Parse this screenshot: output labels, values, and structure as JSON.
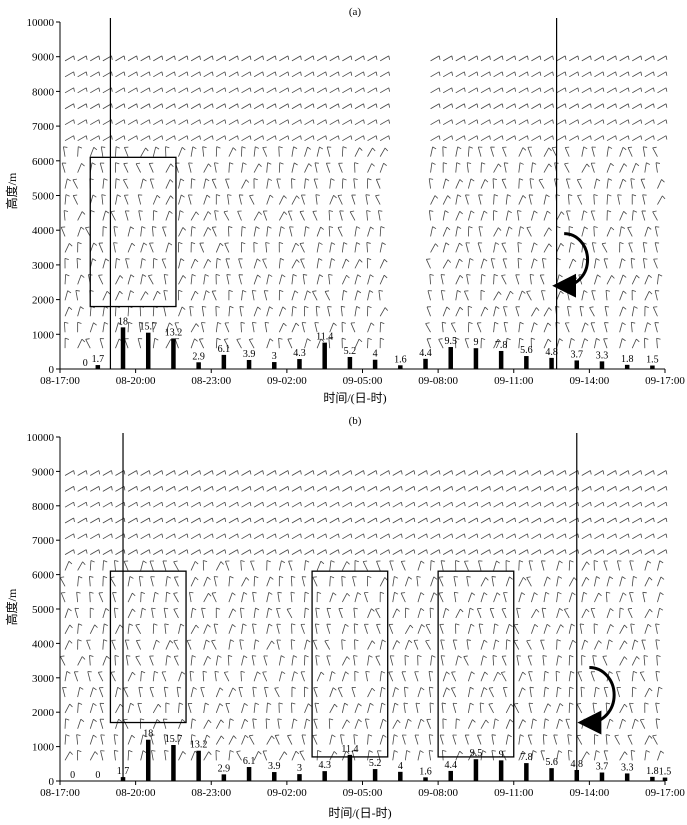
{
  "chart_data": [
    {
      "type": "bar",
      "panel_label": "(a)",
      "ylabel": "高度/m",
      "xlabel": "时间/(日-时)",
      "ylim": [
        0,
        10000
      ],
      "yticks": [
        0,
        1000,
        2000,
        3000,
        4000,
        5000,
        6000,
        7000,
        8000,
        9000,
        10000
      ],
      "xlim_hours": [
        0,
        24
      ],
      "xticks": [
        {
          "label": "08-17:00",
          "hour": 0
        },
        {
          "label": "08-20:00",
          "hour": 3
        },
        {
          "label": "08-23:00",
          "hour": 6
        },
        {
          "label": "09-02:00",
          "hour": 9
        },
        {
          "label": "09-05:00",
          "hour": 12
        },
        {
          "label": "09-08:00",
          "hour": 15
        },
        {
          "label": "09-11:00",
          "hour": 18
        },
        {
          "label": "09-14:00",
          "hour": 21
        },
        {
          "label": "09-17:00",
          "hour": 24
        }
      ],
      "bars": [
        {
          "hour": 1,
          "value": 0
        },
        {
          "hour": 1.5,
          "value": 1.7
        },
        {
          "hour": 2.5,
          "value": 18
        },
        {
          "hour": 3.5,
          "value": 15.7
        },
        {
          "hour": 4.5,
          "value": 13.2
        },
        {
          "hour": 5.5,
          "value": 2.9
        },
        {
          "hour": 6.5,
          "value": 6.1
        },
        {
          "hour": 7.5,
          "value": 3.9
        },
        {
          "hour": 8.5,
          "value": 3
        },
        {
          "hour": 9.5,
          "value": 4.3
        },
        {
          "hour": 10.5,
          "value": 11.4
        },
        {
          "hour": 11.5,
          "value": 5.2
        },
        {
          "hour": 12.5,
          "value": 4
        },
        {
          "hour": 13.5,
          "value": 1.6
        },
        {
          "hour": 14.5,
          "value": 4.4
        },
        {
          "hour": 15.5,
          "value": 9.5
        },
        {
          "hour": 16.5,
          "value": 9
        },
        {
          "hour": 17.5,
          "value": 7.8
        },
        {
          "hour": 18.5,
          "value": 5.6
        },
        {
          "hour": 19.5,
          "value": 4.8
        },
        {
          "hour": 20.5,
          "value": 3.7
        },
        {
          "hour": 21.5,
          "value": 3.3
        },
        {
          "hour": 22.5,
          "value": 1.8
        },
        {
          "hour": 23.5,
          "value": 1.5
        }
      ],
      "vertical_lines_hour": [
        2,
        19.7
      ],
      "boxes": [
        {
          "hour_start": 1.2,
          "hour_end": 4.6,
          "alt_bottom": 1800,
          "alt_top": 6100
        }
      ],
      "rotation_arrow": {
        "hour": 20,
        "alt_bottom": 2400,
        "alt_top": 3900
      },
      "wind_barb_gap_hours": [
        12.7,
        14.5
      ]
    },
    {
      "type": "bar",
      "panel_label": "(b)",
      "ylabel": "高度/m",
      "xlabel": "时间/(日-时)",
      "ylim": [
        0,
        10000
      ],
      "yticks": [
        0,
        1000,
        2000,
        3000,
        4000,
        5000,
        6000,
        7000,
        8000,
        9000,
        10000
      ],
      "xlim_hours": [
        0,
        24
      ],
      "xticks": [
        {
          "label": "08-17:00",
          "hour": 0
        },
        {
          "label": "08-20:00",
          "hour": 3
        },
        {
          "label": "08-23:00",
          "hour": 6
        },
        {
          "label": "09-02:00",
          "hour": 9
        },
        {
          "label": "09-05:00",
          "hour": 12
        },
        {
          "label": "09-08:00",
          "hour": 15
        },
        {
          "label": "09-11:00",
          "hour": 18
        },
        {
          "label": "09-14:00",
          "hour": 21
        },
        {
          "label": "09-17:00",
          "hour": 24
        }
      ],
      "bars": [
        {
          "hour": 0.5,
          "value": 0
        },
        {
          "hour": 1.5,
          "value": 0
        },
        {
          "hour": 2.5,
          "value": 1.7
        },
        {
          "hour": 3.5,
          "value": 18
        },
        {
          "hour": 4.5,
          "value": 15.7
        },
        {
          "hour": 5.5,
          "value": 13.2
        },
        {
          "hour": 6.5,
          "value": 2.9
        },
        {
          "hour": 7.5,
          "value": 6.1
        },
        {
          "hour": 8.5,
          "value": 3.9
        },
        {
          "hour": 9.5,
          "value": 3
        },
        {
          "hour": 10.5,
          "value": 4.3
        },
        {
          "hour": 11.5,
          "value": 11.4
        },
        {
          "hour": 12.5,
          "value": 5.2
        },
        {
          "hour": 13.5,
          "value": 4
        },
        {
          "hour": 14.5,
          "value": 1.6
        },
        {
          "hour": 15.5,
          "value": 4.4
        },
        {
          "hour": 16.5,
          "value": 9.5
        },
        {
          "hour": 17.5,
          "value": 9
        },
        {
          "hour": 18.5,
          "value": 7.8
        },
        {
          "hour": 19.5,
          "value": 5.6
        },
        {
          "hour": 20.5,
          "value": 4.8
        },
        {
          "hour": 21.5,
          "value": 3.7
        },
        {
          "hour": 22.5,
          "value": 3.3
        },
        {
          "hour": 23.5,
          "value": 1.8
        },
        {
          "hour": 24,
          "value": 1.5
        }
      ],
      "vertical_lines_hour": [
        2.5,
        20.5
      ],
      "boxes": [
        {
          "hour_start": 2.0,
          "hour_end": 5.0,
          "alt_bottom": 1700,
          "alt_top": 6100
        },
        {
          "hour_start": 10.0,
          "hour_end": 13.0,
          "alt_bottom": 700,
          "alt_top": 6100
        },
        {
          "hour_start": 15.0,
          "hour_end": 18.0,
          "alt_bottom": 700,
          "alt_top": 6100
        }
      ],
      "rotation_arrow": {
        "hour": 21,
        "alt_bottom": 1700,
        "alt_top": 3300
      },
      "wind_barb_gap_hours": []
    }
  ]
}
